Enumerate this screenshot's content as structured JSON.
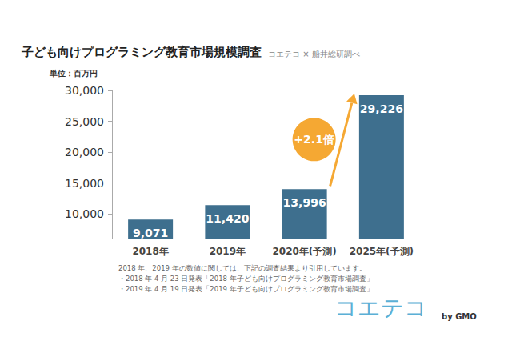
{
  "chart_data": {
    "type": "bar",
    "title": "子ども向けプログラミング教育市場規模調査",
    "subtitle": "コエテコ × 船井総研調べ",
    "y_label": "単位：百万円",
    "categories": [
      "2018年",
      "2019年",
      "2020年(予測)",
      "2025年(予測)"
    ],
    "values": [
      9071,
      11420,
      13996,
      29226
    ],
    "value_labels": [
      "9,071",
      "11,420",
      "13,996",
      "29,226"
    ],
    "color": "#3e6f8e",
    "ylim": [
      6000,
      30000
    ],
    "yticks": [
      {
        "value": 10000,
        "label": "10,000"
      },
      {
        "value": 15000,
        "label": "15,000"
      },
      {
        "value": 20000,
        "label": "20,000"
      },
      {
        "value": 25000,
        "label": "25,000"
      },
      {
        "value": 30000,
        "label": "30,000"
      }
    ],
    "grid": false,
    "data_labels": true,
    "annotation": "+2.1倍",
    "notes": [
      "2018 年、2019 年の数値に関しては、下記の調査結果より引用しています。",
      "・2018 年 4 月 23 日発表「2018 年子ども向けプログラミング教育市場調査」",
      "・2019 年 4 月 19 日発表「2019 年子ども向けプログラミング教育市場調査」"
    ],
    "logo": {
      "text": "コエテコ",
      "suffix": "by GMO"
    }
  }
}
